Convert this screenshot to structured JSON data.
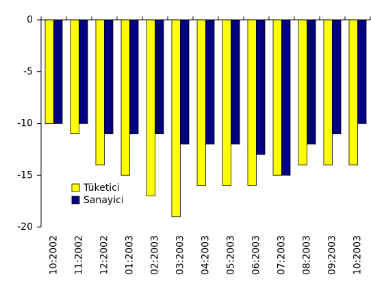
{
  "chart_data": {
    "type": "bar",
    "categories": [
      "10:2002",
      "11:2002",
      "12:2002",
      "01:2003",
      "02:2003",
      "03:2003",
      "04:2003",
      "05:2003",
      "06:2003",
      "07:2003",
      "08:2003",
      "09:2003",
      "10:2003"
    ],
    "series": [
      {
        "name": "Tüketici",
        "color": "#ffff00",
        "values": [
          -10,
          -11,
          -14,
          -15,
          -17,
          -19,
          -16,
          -16,
          -16,
          -15,
          -14,
          -14,
          -14
        ]
      },
      {
        "name": "Sanayici",
        "color": "#000080",
        "values": [
          -10,
          -10,
          -11,
          -11,
          -11,
          -12,
          -12,
          -12,
          -13,
          -15,
          -12,
          -11,
          -10
        ]
      }
    ],
    "ylim": [
      -20,
      0
    ],
    "yticks": [
      0,
      -5,
      -10,
      -15,
      -20
    ],
    "grid": false,
    "legend": "lower left"
  }
}
